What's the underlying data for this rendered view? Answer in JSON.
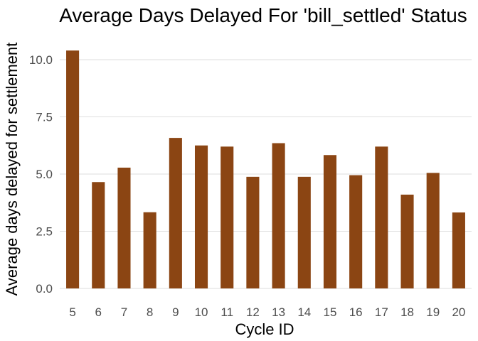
{
  "chart_data": {
    "type": "bar",
    "title": "Average Days Delayed For 'bill_settled' Status",
    "xlabel": "Cycle ID",
    "ylabel": "Average days delayed for settlement",
    "categories": [
      "5",
      "6",
      "7",
      "8",
      "9",
      "10",
      "11",
      "12",
      "13",
      "14",
      "15",
      "16",
      "17",
      "18",
      "19",
      "20"
    ],
    "values": [
      10.4,
      4.65,
      5.28,
      3.33,
      6.58,
      6.25,
      6.2,
      4.88,
      6.35,
      4.88,
      5.83,
      4.95,
      6.2,
      4.1,
      5.05,
      3.32
    ],
    "ylim": [
      0,
      10.9
    ],
    "yticks": [
      0.0,
      2.5,
      5.0,
      7.5,
      10.0
    ],
    "ytick_labels": [
      "0.0",
      "2.5",
      "5.0",
      "7.5",
      "10.0"
    ],
    "grid": "horizontal",
    "bar_color": "#8b4513",
    "legend": "none"
  }
}
